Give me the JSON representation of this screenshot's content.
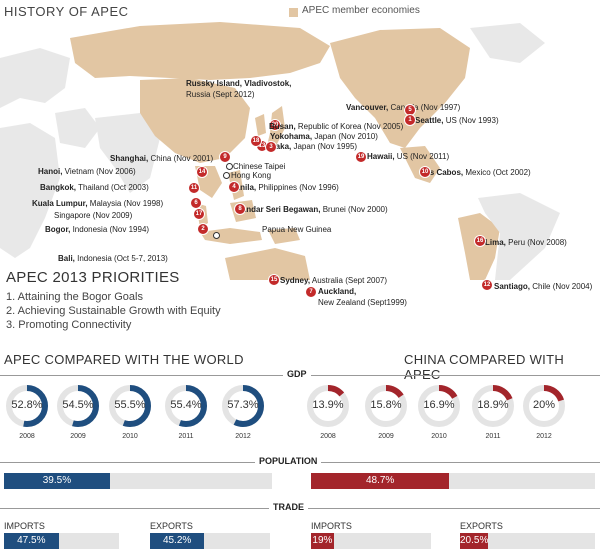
{
  "title": "HISTORY OF APEC",
  "legend": {
    "label": "APEC member economies",
    "color": "#e2c6a3"
  },
  "colors": {
    "blue": "#1f4e7f",
    "red": "#a3252b",
    "marker": "#c32a2a"
  },
  "map_pins": [
    {
      "n": "1",
      "city": "Seattle,",
      "rest": " US (Nov 1993)"
    },
    {
      "n": "2",
      "city": "Bogor,",
      "rest": " Indonesia (Nov 1994)"
    },
    {
      "n": "3",
      "city": "Osaka,",
      "rest": " Japan (Nov 1995)"
    },
    {
      "n": "4",
      "city": "Manila,",
      "rest": " Philippines (Nov 1996)"
    },
    {
      "n": "5",
      "city": "Vancouver,",
      "rest": " Canada (Nov 1997)"
    },
    {
      "n": "6",
      "city": "Kuala Lumpur,",
      "rest": " Malaysia (Nov 1998)"
    },
    {
      "n": "7",
      "city": "Auckland,",
      "rest": "New Zealand (Sept1999)"
    },
    {
      "n": "8",
      "city": "Bandar Seri Begawan,",
      "rest": " Brunei (Nov 2000)"
    },
    {
      "n": "9",
      "city": "Shanghai,",
      "rest": " China (Nov 2001)"
    },
    {
      "n": "10",
      "city": "Los Cabos,",
      "rest": " Mexico (Oct 2002)"
    },
    {
      "n": "11",
      "city": "Bangkok,",
      "rest": " Thailand (Oct 2003)"
    },
    {
      "n": "12",
      "city": "Santiago,",
      "rest": " Chile (Nov 2004)"
    },
    {
      "n": "13",
      "city": "Busan,",
      "rest": " Republic of Korea (Nov 2005)"
    },
    {
      "n": "14",
      "city": "Hanoi,",
      "rest": " Vietnam (Nov 2006)"
    },
    {
      "n": "15",
      "city": "Sydney,",
      "rest": " Australia (Sept 2007)"
    },
    {
      "n": "16",
      "city": "Lima,",
      "rest": " Peru (Nov 2008)"
    },
    {
      "n": "17",
      "city": "",
      "rest": "Singapore (Nov 2009)"
    },
    {
      "n": "18",
      "city": "Yokohama,",
      "rest": " Japan (Nov 2010)"
    },
    {
      "n": "19",
      "city": "Hawaii,",
      "rest": " US (Nov 2011)"
    },
    {
      "n": "20",
      "city": "Russky Island, Vladivostok,",
      "rest": "Russia (Sept 2012)"
    }
  ],
  "bali": {
    "city": "Bali,",
    "rest": " Indonesia (Oct 5-7, 2013)"
  },
  "other_labels": {
    "taipei": "Chinese Taipei",
    "hongkong": "Hong Kong",
    "png": "Papua New Guinea"
  },
  "priorities": {
    "title": "APEC 2013 PRIORITIES",
    "items": [
      "1. Attaining the Bogor Goals",
      "2. Achieving Sustainable Growth with Equity",
      "3. Promoting Connectivity"
    ]
  },
  "comparison": {
    "left_title": "APEC COMPARED WITH THE WORLD",
    "right_title": "CHINA COMPARED WITH APEC",
    "gdp_label": "GDP",
    "population_label": "POPULATION",
    "trade_label": "TRADE",
    "years": [
      "2008",
      "2009",
      "2010",
      "2011",
      "2012"
    ],
    "apec_gdp": [
      {
        "pct": 52.8,
        "label": "52.8%"
      },
      {
        "pct": 54.5,
        "label": "54.5%"
      },
      {
        "pct": 55.5,
        "label": "55.5%"
      },
      {
        "pct": 55.4,
        "label": "55.4%"
      },
      {
        "pct": 57.3,
        "label": "57.3%"
      }
    ],
    "china_gdp": [
      {
        "pct": 13.9,
        "label": "13.9%"
      },
      {
        "pct": 15.8,
        "label": "15.8%"
      },
      {
        "pct": 16.9,
        "label": "16.9%"
      },
      {
        "pct": 18.9,
        "label": "18.9%"
      },
      {
        "pct": 20,
        "label": "20%"
      }
    ],
    "apec_population": {
      "pct": 39.5,
      "label": "39.5%"
    },
    "china_population": {
      "pct": 48.7,
      "label": "48.7%"
    },
    "apec_trade": {
      "imports_label": "IMPORTS",
      "exports_label": "EXPORTS",
      "imports": {
        "pct": 47.5,
        "label": "47.5%"
      },
      "exports": {
        "pct": 45.2,
        "label": "45.2%"
      }
    },
    "china_trade": {
      "imports_label": "IMPORTS",
      "exports_label": "EXPORTS",
      "imports": {
        "pct": 19,
        "label": "19%"
      },
      "exports": {
        "pct": 20.5,
        "label": "20.5%"
      }
    }
  }
}
